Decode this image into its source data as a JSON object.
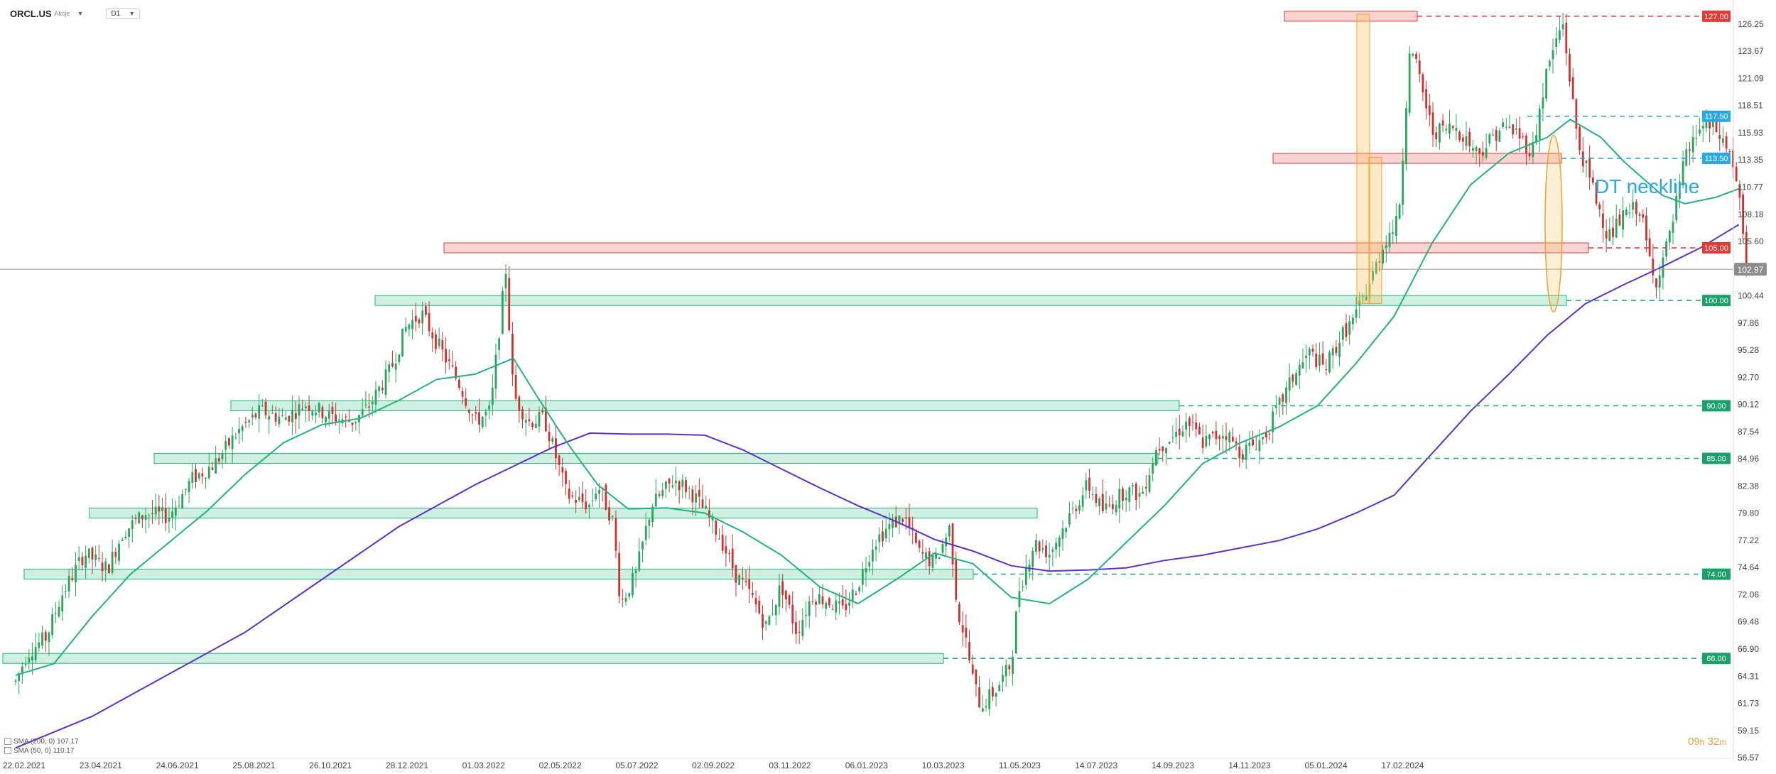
{
  "header": {
    "ticker": "ORCL.US",
    "ticker_sub": "Akcje",
    "timeframe": "D1"
  },
  "legend": [
    {
      "label": "SMA (200, 0) 107.17",
      "color": "#5b2fd0"
    },
    {
      "label": "SMA (50, 0) 110.17",
      "color": "#1fb57a"
    }
  ],
  "countdown": {
    "hours": "09",
    "h_unit": "h",
    "minutes": "32",
    "m_unit": "m"
  },
  "annotation_text": "DT neckline",
  "colors": {
    "bull": "#26a65b",
    "bear": "#d32f2f",
    "sma50": "#1fb57a",
    "sma200": "#5b2fd0",
    "resistance": "#e53935",
    "support": "#1fb57a",
    "neckline": "#29a9e0"
  },
  "chart_data": {
    "type": "candlestick",
    "ylim": [
      56.57,
      128.8
    ],
    "y_ticks": [
      "126.25",
      "123.67",
      "121.09",
      "118.51",
      "115.93",
      "113.35",
      "110.77",
      "108.18",
      "105.60",
      "103.02",
      "100.44",
      "97.86",
      "95.28",
      "92.70",
      "90.12",
      "87.54",
      "84.96",
      "82.38",
      "79.80",
      "77.22",
      "74.64",
      "72.06",
      "69.48",
      "66.90",
      "64.31",
      "61.73",
      "59.15",
      "56.57"
    ],
    "x_ticks": [
      "22.02.2021",
      "23.04.2021",
      "24.06.2021",
      "25.08.2021",
      "26.10.2021",
      "28.12.2021",
      "01.03.2022",
      "02.05.2022",
      "05.07.2022",
      "02.09.2022",
      "03.11.2022",
      "06.01.2023",
      "10.03.2023",
      "11.05.2023",
      "14.07.2023",
      "14.09.2023",
      "14.11.2023",
      "05.01.2024",
      "17.02.2024"
    ],
    "last_price": "102.97",
    "level_labels": [
      {
        "text": "127.00",
        "value": 127.0,
        "kind": "resistance"
      },
      {
        "text": "117.50",
        "value": 117.5,
        "kind": "neckline"
      },
      {
        "text": "113.50",
        "value": 113.5,
        "kind": "neckline"
      },
      {
        "text": "105.00",
        "value": 105.0,
        "kind": "resistance"
      },
      {
        "text": "100.00",
        "value": 100.0,
        "kind": "support"
      },
      {
        "text": "90.00",
        "value": 90.0,
        "kind": "support"
      },
      {
        "text": "85.00",
        "value": 85.0,
        "kind": "support"
      },
      {
        "text": "74.00",
        "value": 74.0,
        "kind": "support"
      },
      {
        "text": "66.00",
        "value": 66.0,
        "kind": "support"
      }
    ],
    "price_path": [
      [
        0,
        63.8
      ],
      [
        0.15,
        66.5
      ],
      [
        0.4,
        68
      ],
      [
        0.6,
        72
      ],
      [
        0.9,
        76
      ],
      [
        1.2,
        74.5
      ],
      [
        1.4,
        78
      ],
      [
        1.7,
        79.8
      ],
      [
        2.0,
        79.5
      ],
      [
        2.3,
        83
      ],
      [
        2.6,
        84.5
      ],
      [
        2.9,
        87.5
      ],
      [
        3.2,
        89.5
      ],
      [
        3.5,
        88.8
      ],
      [
        3.8,
        90.2
      ],
      [
        4.1,
        89.0
      ],
      [
        4.4,
        88.5
      ],
      [
        4.6,
        89.8
      ],
      [
        4.9,
        93.5
      ],
      [
        5.1,
        97.5
      ],
      [
        5.3,
        98.8
      ],
      [
        5.5,
        96
      ],
      [
        5.8,
        92
      ],
      [
        6.0,
        88.5
      ],
      [
        6.2,
        89.5
      ],
      [
        6.4,
        103.0
      ],
      [
        6.5,
        91
      ],
      [
        6.7,
        88.5
      ],
      [
        6.9,
        88.8
      ],
      [
        7.0,
        86.5
      ],
      [
        7.2,
        81.5
      ],
      [
        7.5,
        80.5
      ],
      [
        7.6,
        82.5
      ],
      [
        7.8,
        79
      ],
      [
        7.9,
        71.2
      ],
      [
        8.1,
        74
      ],
      [
        8.3,
        80.5
      ],
      [
        8.6,
        83
      ],
      [
        8.8,
        82
      ],
      [
        9.0,
        80
      ],
      [
        9.2,
        77.5
      ],
      [
        9.4,
        74
      ],
      [
        9.6,
        72
      ],
      [
        9.8,
        69
      ],
      [
        10.0,
        73
      ],
      [
        10.2,
        68.5
      ],
      [
        10.4,
        72
      ],
      [
        10.6,
        71.5
      ],
      [
        10.8,
        70.5
      ],
      [
        11.0,
        73
      ],
      [
        11.2,
        77
      ],
      [
        11.4,
        78.5
      ],
      [
        11.6,
        79.5
      ],
      [
        11.8,
        76
      ],
      [
        12.0,
        75
      ],
      [
        12.2,
        78.5
      ],
      [
        12.3,
        70.5
      ],
      [
        12.4,
        68
      ],
      [
        12.5,
        64
      ],
      [
        12.6,
        61.5
      ],
      [
        12.8,
        63
      ],
      [
        13.0,
        65.5
      ],
      [
        13.1,
        72.5
      ],
      [
        13.3,
        77
      ],
      [
        13.5,
        76
      ],
      [
        13.8,
        80
      ],
      [
        14.0,
        82.5
      ],
      [
        14.2,
        80
      ],
      [
        14.5,
        82
      ],
      [
        14.7,
        81.5
      ],
      [
        14.9,
        86
      ],
      [
        15.1,
        87
      ],
      [
        15.3,
        88.5
      ],
      [
        15.5,
        86.5
      ],
      [
        15.8,
        87.5
      ],
      [
        16.0,
        85.5
      ],
      [
        16.3,
        87
      ],
      [
        16.5,
        90
      ],
      [
        16.7,
        93
      ],
      [
        16.9,
        95
      ],
      [
        17.1,
        93.5
      ],
      [
        17.3,
        96.5
      ],
      [
        17.5,
        98.5
      ],
      [
        17.7,
        102
      ],
      [
        17.9,
        106
      ],
      [
        18.05,
        107.5
      ],
      [
        18.1,
        112
      ],
      [
        18.2,
        124
      ],
      [
        18.3,
        122
      ],
      [
        18.5,
        116
      ],
      [
        18.8,
        116.5
      ],
      [
        19.1,
        114
      ],
      [
        19.4,
        116.5
      ],
      [
        19.6,
        116
      ],
      [
        19.8,
        114
      ],
      [
        20.0,
        122
      ],
      [
        20.2,
        126.5
      ],
      [
        20.4,
        115
      ],
      [
        20.6,
        110.5
      ],
      [
        20.8,
        106
      ],
      [
        21.0,
        108
      ],
      [
        21.2,
        109
      ],
      [
        21.4,
        101.5
      ],
      [
        21.6,
        106
      ],
      [
        21.8,
        113.5
      ],
      [
        22.0,
        116.5
      ],
      [
        22.2,
        116.2
      ],
      [
        22.4,
        113.8
      ],
      [
        22.5,
        110
      ],
      [
        22.6,
        102.97
      ]
    ],
    "sma50_path": [
      [
        0,
        64.4
      ],
      [
        0.5,
        65.5
      ],
      [
        1.0,
        70
      ],
      [
        1.5,
        74
      ],
      [
        2.0,
        77
      ],
      [
        2.5,
        80
      ],
      [
        3.0,
        83.5
      ],
      [
        3.5,
        86.5
      ],
      [
        4.0,
        88.2
      ],
      [
        4.5,
        88.8
      ],
      [
        5.0,
        90.5
      ],
      [
        5.5,
        92.5
      ],
      [
        6.0,
        93.0
      ],
      [
        6.5,
        94.5
      ],
      [
        6.8,
        91
      ],
      [
        7.2,
        86.5
      ],
      [
        7.6,
        82.5
      ],
      [
        8.0,
        80.2
      ],
      [
        8.5,
        80.3
      ],
      [
        9.0,
        79.8
      ],
      [
        9.5,
        78
      ],
      [
        10.0,
        75.8
      ],
      [
        10.5,
        72.8
      ],
      [
        11.0,
        71.2
      ],
      [
        11.5,
        73.5
      ],
      [
        12.0,
        76
      ],
      [
        12.5,
        75
      ],
      [
        13.0,
        71.8
      ],
      [
        13.5,
        71.2
      ],
      [
        14.0,
        73.5
      ],
      [
        14.5,
        77
      ],
      [
        15.0,
        80.5
      ],
      [
        15.5,
        84.5
      ],
      [
        16.0,
        86.5
      ],
      [
        16.5,
        88
      ],
      [
        17.0,
        90
      ],
      [
        17.5,
        94
      ],
      [
        18.0,
        98.5
      ],
      [
        18.5,
        105.5
      ],
      [
        19.0,
        111
      ],
      [
        19.5,
        114
      ],
      [
        20.0,
        115.5
      ],
      [
        20.3,
        117.2
      ],
      [
        20.7,
        115.5
      ],
      [
        21.0,
        113.2
      ],
      [
        21.5,
        110
      ],
      [
        21.8,
        109.2
      ],
      [
        22.2,
        109.8
      ],
      [
        22.5,
        110.6
      ]
    ],
    "sma200_path": [
      [
        0,
        57.5
      ],
      [
        1.0,
        60.5
      ],
      [
        2.0,
        64.5
      ],
      [
        3.0,
        68.5
      ],
      [
        4.0,
        73.5
      ],
      [
        5.0,
        78.5
      ],
      [
        6.0,
        82.5
      ],
      [
        7.0,
        86
      ],
      [
        7.5,
        87.4
      ],
      [
        8.0,
        87.3
      ],
      [
        8.5,
        87.3
      ],
      [
        9.0,
        87.2
      ],
      [
        9.5,
        85.8
      ],
      [
        10.0,
        84
      ],
      [
        10.5,
        82.2
      ],
      [
        11.0,
        80.5
      ],
      [
        11.5,
        79
      ],
      [
        12.0,
        77.3
      ],
      [
        12.5,
        76.2
      ],
      [
        13.0,
        74.8
      ],
      [
        13.5,
        74.3
      ],
      [
        14.0,
        74.4
      ],
      [
        14.5,
        74.6
      ],
      [
        15.0,
        75.3
      ],
      [
        15.5,
        75.8
      ],
      [
        16.0,
        76.5
      ],
      [
        16.5,
        77.2
      ],
      [
        17.0,
        78.3
      ],
      [
        17.5,
        79.8
      ],
      [
        18.0,
        81.5
      ],
      [
        18.5,
        85.5
      ],
      [
        19.0,
        89.5
      ],
      [
        19.5,
        93
      ],
      [
        20.0,
        96.7
      ],
      [
        20.5,
        99.7
      ],
      [
        21.0,
        101.5
      ],
      [
        21.5,
        103.2
      ],
      [
        22.0,
        105
      ],
      [
        22.5,
        107.2
      ]
    ]
  }
}
